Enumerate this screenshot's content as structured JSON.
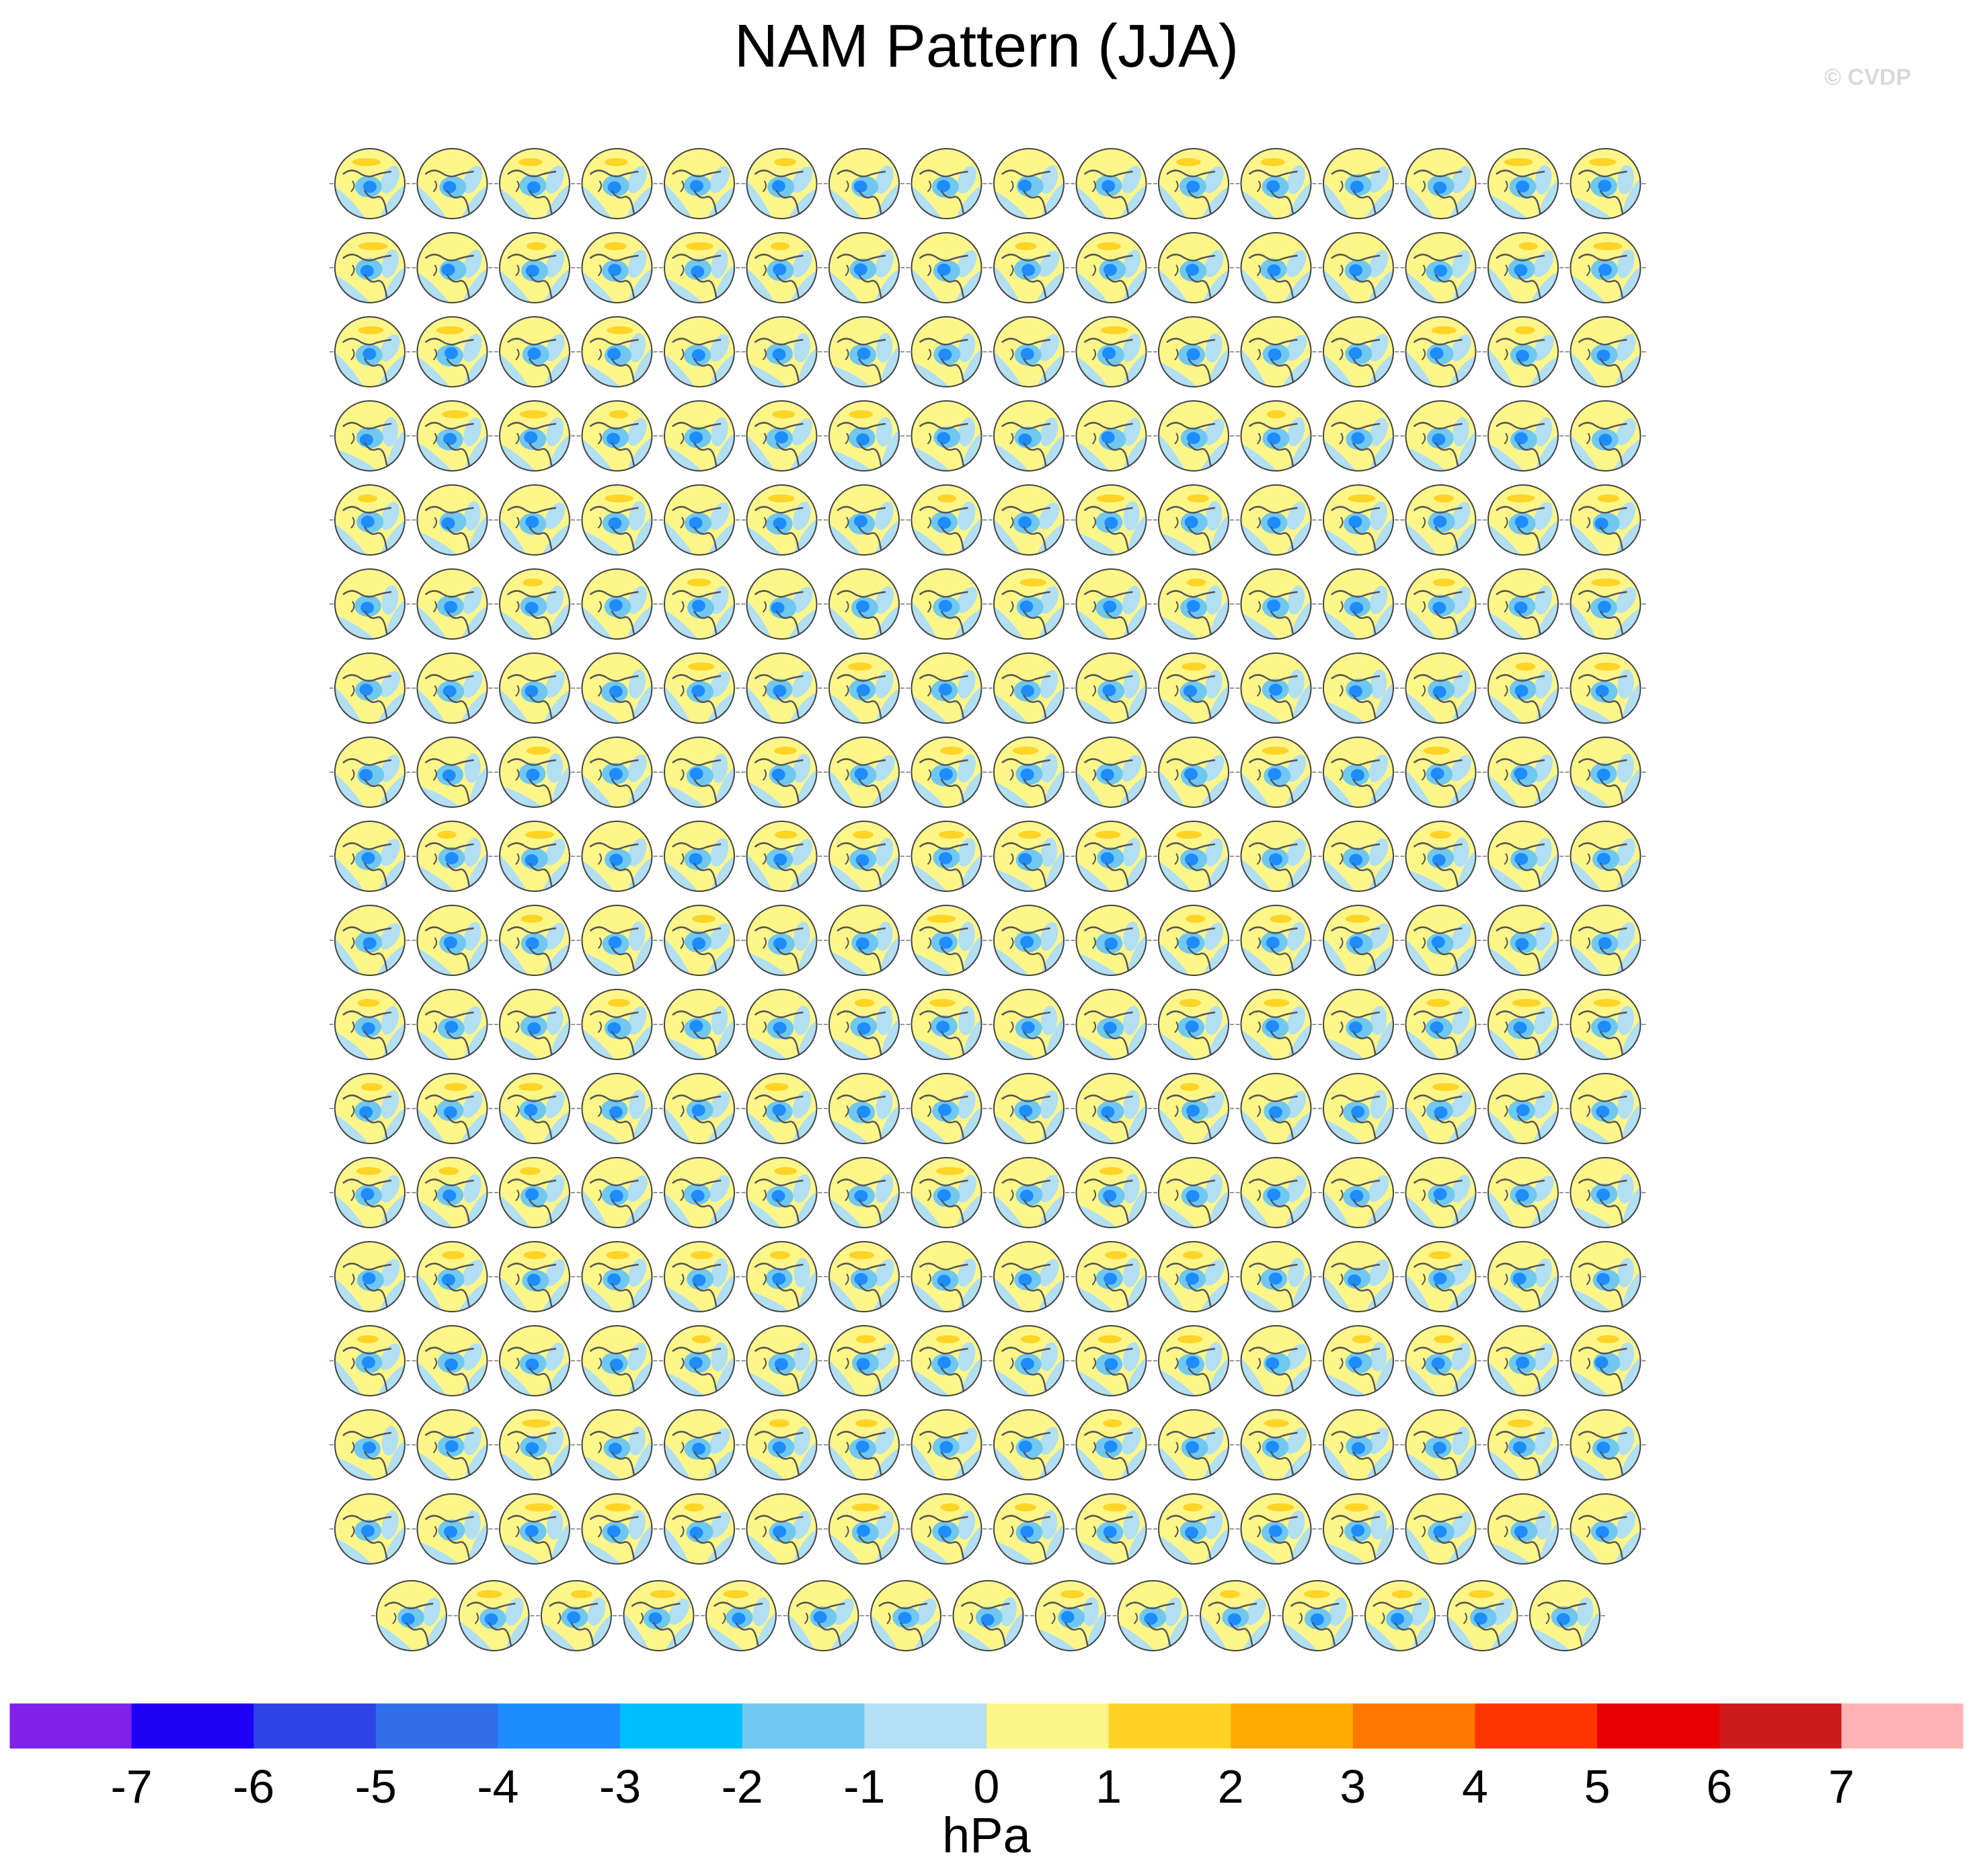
{
  "title": "NAM Pattern (JJA)",
  "copyright": "© CVDP",
  "chart_data": {
    "type": "heatmap",
    "description_kind": "panel grid of polar stereographic maps",
    "title": "NAM Pattern (JJA)",
    "panel_rows": 18,
    "panel_cols": 16,
    "last_row_panels": 15,
    "colorbar": {
      "units": "hPa",
      "tick_labels": [
        "-7",
        "-6",
        "-5",
        "-4",
        "-3",
        "-2",
        "-1",
        "0",
        "1",
        "2",
        "3",
        "4",
        "5",
        "6",
        "7"
      ],
      "colors": [
        "#8020e8",
        "#1e00f5",
        "#2e44e6",
        "#2f6ee6",
        "#1e8cff",
        "#00bfff",
        "#70c8f0",
        "#b2dff2",
        "#fff68a",
        "#ffd426",
        "#ffab00",
        "#ff7800",
        "#ff3500",
        "#e60000",
        "#cd1a1a",
        "#ffb3b3"
      ]
    },
    "map_colors": {
      "positive_weak": "#fff68a",
      "positive_moderate": "#ffd426",
      "negative_weak": "#b2dff2",
      "negative_moderate": "#70c8f0",
      "negative_strong": "#1e8cff"
    }
  }
}
